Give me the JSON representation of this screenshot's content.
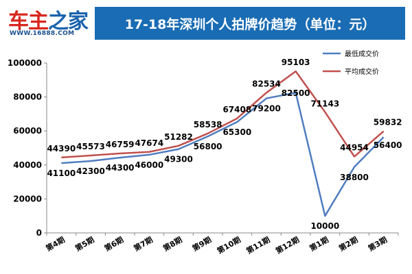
{
  "logo": {
    "part1": "车主",
    "part2": "之家",
    "url": "WWW.16888.COM"
  },
  "colors": {
    "title_bg": "#1a6cb4",
    "series_min": "#4f7dbf",
    "series_avg": "#c0504d"
  },
  "chart_data": {
    "type": "line",
    "title": "17-18年深圳个人拍牌价趋势（单位：元）",
    "categories": [
      "第4期",
      "第5期",
      "第6期",
      "第7期",
      "第8期",
      "第9期",
      "第10期",
      "第11期",
      "第12期",
      "第1期",
      "第2期",
      "第3期"
    ],
    "series": [
      {
        "name": "最低成交价",
        "color": "#4f7dbf",
        "values": [
          41100,
          42300,
          44300,
          46000,
          49300,
          56800,
          65300,
          79200,
          82500,
          10000,
          38800,
          56400
        ]
      },
      {
        "name": "平均成交价",
        "color": "#c0504d",
        "values": [
          44390,
          45573,
          46759,
          47674,
          51282,
          58538,
          67408,
          82534,
          95103,
          71143,
          44954,
          59832
        ]
      }
    ],
    "yticks": [
      "0",
      "20000",
      "40000",
      "60000",
      "80000",
      "100000"
    ],
    "ylim": [
      0,
      100000
    ],
    "grid": false,
    "legend": "top-right"
  }
}
